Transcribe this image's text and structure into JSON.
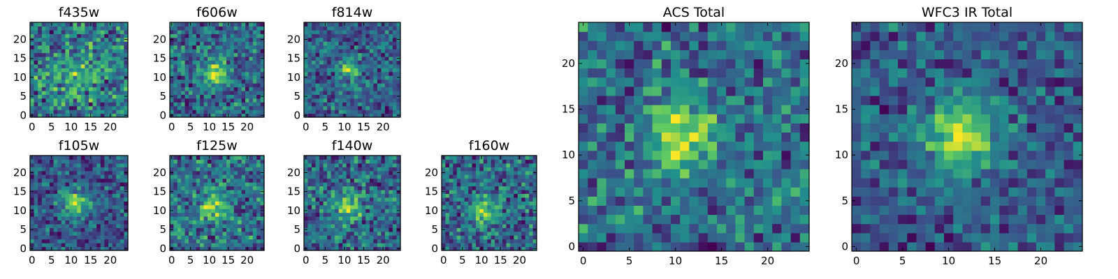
{
  "figure": {
    "colormap": "viridis",
    "colormap_stops": [
      "#440154",
      "#3b528b",
      "#21918c",
      "#5ec962",
      "#fde725"
    ],
    "background": "#ffffff"
  },
  "chart_data": [
    {
      "type": "heatmap",
      "title": "f435w",
      "grid_size": 25,
      "peak": [
        11,
        10
      ],
      "sigma": 4,
      "amp": 0.25,
      "noise": 0.55,
      "seed": 11,
      "xticks": [
        0,
        5,
        10,
        15,
        20
      ],
      "yticks": [
        0,
        5,
        10,
        15,
        20
      ],
      "xlim": [
        0,
        24
      ],
      "ylim": [
        0,
        24
      ]
    },
    {
      "type": "heatmap",
      "title": "f606w",
      "grid_size": 25,
      "peak": [
        11,
        11
      ],
      "sigma": 2.2,
      "amp": 0.6,
      "noise": 0.4,
      "seed": 23,
      "xticks": [
        0,
        5,
        10,
        15,
        20
      ],
      "yticks": [
        0,
        5,
        10,
        15,
        20
      ],
      "xlim": [
        0,
        24
      ],
      "ylim": [
        0,
        24
      ]
    },
    {
      "type": "heatmap",
      "title": "f814w",
      "grid_size": 25,
      "peak": [
        11,
        12
      ],
      "sigma": 2.2,
      "amp": 0.55,
      "noise": 0.45,
      "seed": 37,
      "xticks": [
        0,
        5,
        10,
        15,
        20
      ],
      "yticks": [
        0,
        5,
        10,
        15,
        20
      ],
      "xlim": [
        0,
        24
      ],
      "ylim": [
        0,
        24
      ]
    },
    {
      "type": "heatmap",
      "title": "f105w",
      "grid_size": 25,
      "peak": [
        11,
        12
      ],
      "sigma": 2.5,
      "amp": 0.55,
      "noise": 0.35,
      "seed": 41,
      "xticks": [
        0,
        5,
        10,
        15,
        20
      ],
      "yticks": [
        0,
        5,
        10,
        15,
        20
      ],
      "xlim": [
        0,
        24
      ],
      "ylim": [
        0,
        24
      ]
    },
    {
      "type": "heatmap",
      "title": "f125w",
      "grid_size": 25,
      "peak": [
        11,
        11
      ],
      "sigma": 2.5,
      "amp": 0.5,
      "noise": 0.45,
      "seed": 53,
      "xticks": [
        0,
        5,
        10,
        15,
        20
      ],
      "yticks": [
        0,
        5,
        10,
        15,
        20
      ],
      "xlim": [
        0,
        24
      ],
      "ylim": [
        0,
        24
      ]
    },
    {
      "type": "heatmap",
      "title": "f140w",
      "grid_size": 25,
      "peak": [
        11,
        11
      ],
      "sigma": 2.5,
      "amp": 0.55,
      "noise": 0.45,
      "seed": 67,
      "xticks": [
        0,
        5,
        10,
        15,
        20
      ],
      "yticks": [
        0,
        5,
        10,
        15,
        20
      ],
      "xlim": [
        0,
        24
      ],
      "ylim": [
        0,
        24
      ]
    },
    {
      "type": "heatmap",
      "title": "f160w",
      "grid_size": 25,
      "peak": [
        11,
        10
      ],
      "sigma": 2.5,
      "amp": 0.55,
      "noise": 0.45,
      "seed": 79,
      "xticks": [
        0,
        5,
        10,
        15,
        20
      ],
      "yticks": [
        0,
        5,
        10,
        15,
        20
      ],
      "xlim": [
        0,
        24
      ],
      "ylim": [
        0,
        24
      ]
    },
    {
      "type": "heatmap",
      "title": "ACS Total",
      "grid_size": 25,
      "peak": [
        10.5,
        12
      ],
      "sigma": 2.6,
      "amp": 0.55,
      "noise": 0.35,
      "seed": 97,
      "xticks": [
        0,
        5,
        10,
        15,
        20
      ],
      "yticks": [
        0,
        5,
        10,
        15,
        20
      ],
      "xlim": [
        0,
        24
      ],
      "ylim": [
        0,
        24
      ]
    },
    {
      "type": "heatmap",
      "title": "WFC3 IR Total",
      "grid_size": 25,
      "peak": [
        11.5,
        12
      ],
      "sigma": 2.6,
      "amp": 0.55,
      "noise": 0.25,
      "seed": 113,
      "xticks": [
        0,
        5,
        10,
        15,
        20
      ],
      "yticks": [
        0,
        5,
        10,
        15,
        20
      ],
      "xlim": [
        0,
        24
      ],
      "ylim": [
        0,
        24
      ]
    }
  ]
}
